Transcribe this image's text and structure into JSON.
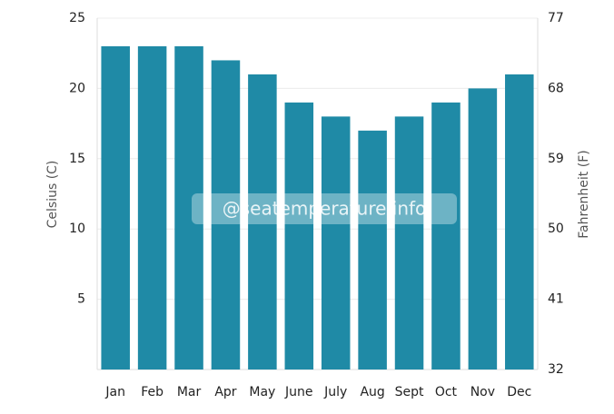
{
  "chart_data": {
    "type": "bar",
    "categories": [
      "Jan",
      "Feb",
      "Mar",
      "Apr",
      "May",
      "June",
      "July",
      "Aug",
      "Sept",
      "Oct",
      "Nov",
      "Dec"
    ],
    "values": [
      23,
      23,
      23,
      22,
      21,
      19,
      18,
      17,
      18,
      19,
      20,
      21
    ],
    "color": "#1f8aa6",
    "ylabel": "Celsius (C)",
    "y2label": "Fahrenheit (F)",
    "ylim": [
      0,
      25
    ],
    "yticks": [
      5,
      10,
      15,
      20,
      25
    ],
    "y2lim": [
      32,
      77
    ],
    "y2ticks": [
      32,
      41,
      50,
      59,
      68,
      77
    ],
    "grid": true,
    "annotation": "@seatemperature.info"
  }
}
